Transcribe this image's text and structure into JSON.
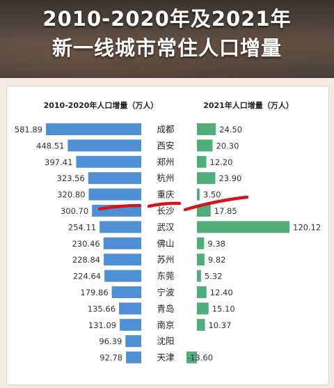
{
  "title": {
    "line1": "2010-2020年及2021年",
    "line2": "新一线城市常住人口增量"
  },
  "colors": {
    "left_bar": "#4f8fd3",
    "right_bar": "#4fae7a",
    "highlight_stroke": "#d4141e"
  },
  "chart_data": [
    {
      "type": "bar",
      "orientation": "horizontal",
      "title": "2010-2020年人口增量（万人）",
      "categories": [
        "成都",
        "西安",
        "郑州",
        "杭州",
        "重庆",
        "长沙",
        "武汉",
        "佛山",
        "苏州",
        "东莞",
        "宁波",
        "青岛",
        "南京",
        "沈阳",
        "天津"
      ],
      "values": [
        581.89,
        448.51,
        397.41,
        323.56,
        320.8,
        300.7,
        254.11,
        230.46,
        228.84,
        224.64,
        179.86,
        135.66,
        131.09,
        96.39,
        92.78
      ],
      "value_labels": [
        "581.89",
        "448.51",
        "397.41",
        "323.56",
        "320.80",
        "300.70",
        "254.11",
        "230.46",
        "228.84",
        "224.64",
        "179.86",
        "135.66",
        "131.09",
        "96.39",
        "92.78"
      ]
    },
    {
      "type": "bar",
      "orientation": "horizontal",
      "title": "2021年人口增量（万人）",
      "categories": [
        "成都",
        "西安",
        "郑州",
        "杭州",
        "重庆",
        "长沙",
        "武汉",
        "佛山",
        "苏州",
        "东莞",
        "宁波",
        "青岛",
        "南京",
        "沈阳",
        "天津"
      ],
      "values": [
        24.5,
        20.3,
        12.2,
        23.9,
        3.5,
        17.85,
        120.12,
        9.38,
        9.82,
        5.32,
        12.4,
        15.1,
        10.37,
        0,
        -13.6
      ],
      "value_labels": [
        "24.50",
        "20.30",
        "12.20",
        "23.90",
        "3.50",
        "17.85",
        "120.12",
        "9.38",
        "9.82",
        "5.32",
        "12.40",
        "15.10",
        "10.37",
        "",
        "-13.60"
      ]
    }
  ],
  "annotation": {
    "type": "hand-drawn underline",
    "highlighted_city": "重庆"
  }
}
